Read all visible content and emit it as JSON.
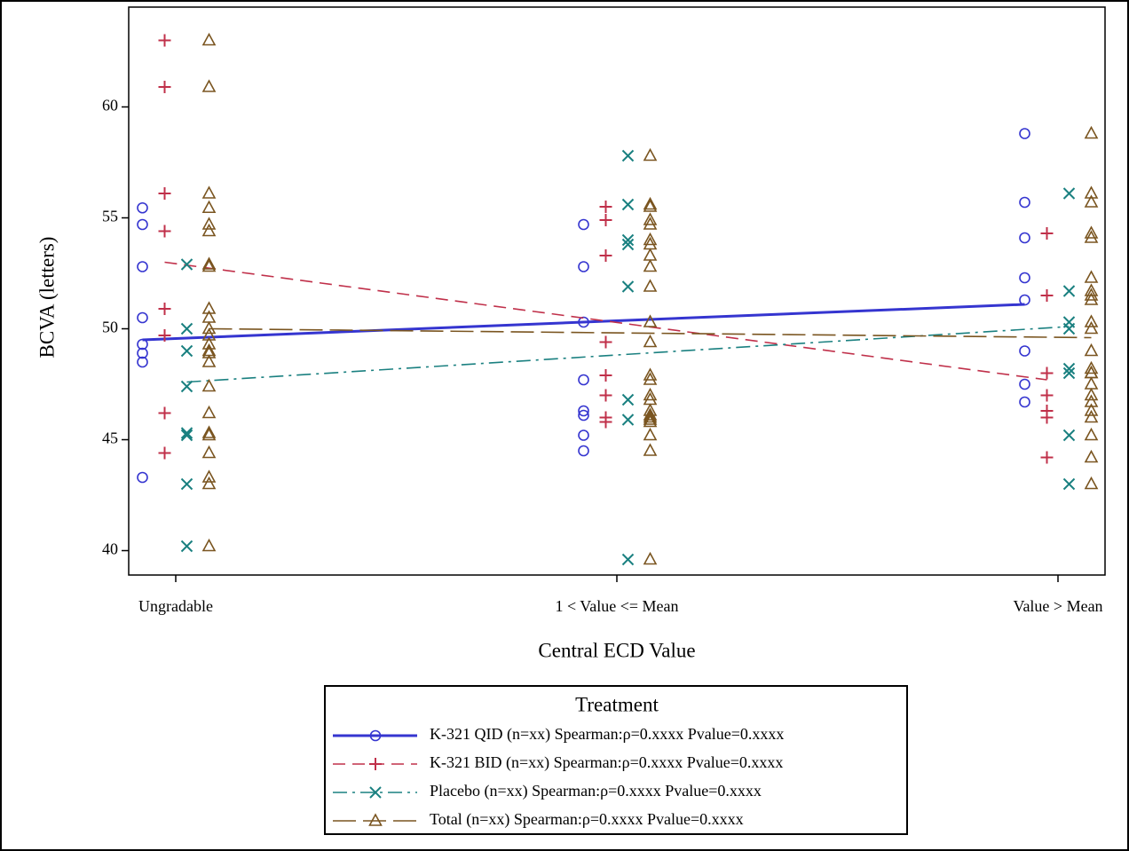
{
  "chart_data": {
    "type": "scatter",
    "x_label": "Central ECD Value",
    "y_label": "BCVA (letters)",
    "categories": [
      "Ungradable",
      "1 < Value <= Mean",
      "Value > Mean"
    ],
    "ylim": [
      38.9,
      64.5
    ],
    "yticks": [
      40,
      45,
      50,
      55,
      60
    ],
    "legend_title": "Treatment",
    "series": [
      {
        "name": "K-321 QID (n=xx) Spearman:ρ=0.xxxx Pvalue=0.xxxx",
        "color": "#3535d0",
        "marker": "circle",
        "dash": "solid",
        "values": [
          [
            55.45,
            54.7,
            52.8,
            50.5,
            49.3,
            48.9,
            48.5,
            43.3
          ],
          [
            54.7,
            52.8,
            50.3,
            47.7,
            46.3,
            46.1,
            45.2,
            44.5
          ],
          [
            58.8,
            55.7,
            54.1,
            52.3,
            51.3,
            49.0,
            47.5,
            46.7
          ]
        ],
        "fit": [
          49.5,
          51.1
        ]
      },
      {
        "name": "K-321 BID (n=xx) Spearman:ρ=0.xxxx Pvalue=0.xxxx",
        "color": "#c0304a",
        "marker": "plus",
        "dash": "dashed",
        "values": [
          [
            63.0,
            60.9,
            56.1,
            54.4,
            50.9,
            49.7,
            46.2,
            44.4
          ],
          [
            55.5,
            54.9,
            53.3,
            49.4,
            47.9,
            47.0,
            46.0,
            45.8
          ],
          [
            54.3,
            51.5,
            48.0,
            47.0,
            46.3,
            46.0,
            44.2
          ]
        ],
        "fit": [
          53.0,
          47.7
        ]
      },
      {
        "name": "Placebo (n=xx) Spearman:ρ=0.xxxx Pvalue=0.xxxx",
        "color": "#1a8080",
        "marker": "x",
        "dash": "dashdot",
        "values": [
          [
            52.9,
            50.0,
            49.0,
            47.4,
            45.3,
            45.2,
            43.0,
            40.2
          ],
          [
            57.8,
            55.6,
            54.0,
            53.8,
            51.9,
            46.8,
            45.9,
            39.6
          ],
          [
            56.1,
            51.7,
            50.3,
            50.0,
            48.2,
            48.0,
            45.2,
            43.0
          ]
        ],
        "fit": [
          47.6,
          50.1
        ]
      },
      {
        "name": "Total (n=xx) Spearman:ρ=0.xxxx Pvalue=0.xxxx",
        "color": "#7a5520",
        "marker": "triangle",
        "dash": "longdash",
        "values": [
          [
            63.0,
            60.9,
            56.1,
            55.45,
            54.7,
            54.4,
            52.9,
            52.8,
            50.9,
            50.5,
            50.0,
            49.7,
            49.3,
            49.0,
            48.9,
            48.5,
            47.4,
            46.2,
            45.3,
            45.2,
            44.4,
            43.3,
            43.0,
            40.2
          ],
          [
            57.8,
            55.6,
            55.5,
            54.9,
            54.7,
            54.0,
            53.8,
            53.3,
            52.8,
            51.9,
            50.3,
            49.4,
            47.9,
            47.7,
            47.0,
            46.8,
            46.3,
            46.1,
            46.0,
            45.9,
            45.8,
            45.2,
            44.5,
            39.6
          ],
          [
            58.8,
            56.1,
            55.7,
            54.3,
            54.1,
            52.3,
            51.7,
            51.5,
            51.3,
            50.3,
            50.0,
            49.0,
            48.2,
            48.0,
            48.0,
            47.5,
            47.0,
            46.7,
            46.3,
            46.0,
            45.2,
            44.2,
            43.0
          ]
        ],
        "fit": [
          50.0,
          49.6
        ]
      }
    ]
  }
}
